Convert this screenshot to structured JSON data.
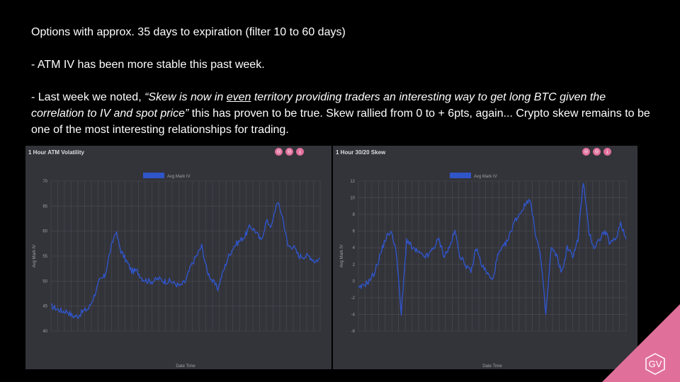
{
  "text": {
    "line1": "Options with approx. 35 days to expiration (filter 10 to 60 days)",
    "line2": "- ATM IV has been more stable this past week.",
    "line3_a": "- Last week we noted, ",
    "line3_quote_a": "“Skew is now in ",
    "line3_quote_ul": "even",
    "line3_quote_b": " territory providing traders an interesting way to get long BTC given the correlation to IV and spot price”",
    "line3_b": " this has proven to be true. Skew rallied from 0 to + 6pts, again... Crypto skew remains to be one of the most interesting relationships for trading."
  },
  "panels": [
    {
      "title": "1 Hour ATM Volatility",
      "buttons": [
        "◎",
        "◎",
        "⤓"
      ]
    },
    {
      "title": "1 Hour 30/20 Skew",
      "buttons": [
        "◎",
        "◎",
        "⤓"
      ]
    }
  ],
  "logo": "GV",
  "colors": {
    "series": "#2f55c8",
    "accent": "#e0709a",
    "panel": "#33333a"
  },
  "chart_data": [
    {
      "type": "line",
      "title": "1 Hour ATM Volatility",
      "xlabel": "Date Time",
      "ylabel": "Avg Mark IV",
      "ylim": [
        40,
        70
      ],
      "yticks": [
        40,
        45,
        50,
        55,
        60,
        65,
        70
      ],
      "grid": true,
      "legend_position": "top",
      "series": [
        {
          "name": "Avg Mark IV",
          "x": [
            0,
            0.02,
            0.04,
            0.06,
            0.08,
            0.1,
            0.12,
            0.14,
            0.16,
            0.18,
            0.2,
            0.22,
            0.24,
            0.26,
            0.28,
            0.3,
            0.32,
            0.34,
            0.36,
            0.38,
            0.4,
            0.42,
            0.44,
            0.46,
            0.48,
            0.5,
            0.52,
            0.54,
            0.56,
            0.58,
            0.6,
            0.62,
            0.64,
            0.66,
            0.68,
            0.7,
            0.72,
            0.74,
            0.76,
            0.78,
            0.8,
            0.82,
            0.84,
            0.86,
            0.88,
            0.9,
            0.92,
            0.94,
            0.96,
            0.98,
            1.0
          ],
          "values": [
            45,
            44.5,
            44,
            44,
            43,
            43,
            44,
            44.5,
            47,
            50,
            51,
            56,
            60,
            56,
            54,
            52,
            52,
            50.5,
            50,
            50,
            50.5,
            50,
            50,
            49.5,
            49,
            50,
            53,
            55,
            57,
            52,
            50,
            48.5,
            52,
            55,
            57,
            58,
            59,
            61,
            60,
            58,
            62,
            61,
            66,
            63,
            57,
            57,
            55,
            55,
            55,
            54,
            54.5
          ]
        }
      ]
    },
    {
      "type": "line",
      "title": "1 Hour 30/20 Skew",
      "xlabel": "Date Time",
      "ylabel": "Avg Mark IV",
      "ylim": [
        -6,
        12
      ],
      "yticks": [
        -6,
        -4,
        -2,
        0,
        2,
        4,
        6,
        8,
        10,
        12
      ],
      "grid": true,
      "legend_position": "top",
      "series": [
        {
          "name": "Avg Mark IV",
          "x": [
            0,
            0.02,
            0.04,
            0.06,
            0.08,
            0.1,
            0.12,
            0.14,
            0.16,
            0.18,
            0.2,
            0.22,
            0.24,
            0.26,
            0.28,
            0.3,
            0.32,
            0.34,
            0.36,
            0.38,
            0.4,
            0.42,
            0.44,
            0.46,
            0.48,
            0.5,
            0.52,
            0.54,
            0.56,
            0.58,
            0.6,
            0.62,
            0.64,
            0.66,
            0.68,
            0.7,
            0.72,
            0.74,
            0.76,
            0.78,
            0.8,
            0.82,
            0.84,
            0.86,
            0.88,
            0.9,
            0.92,
            0.94,
            0.96,
            0.98,
            1.0
          ],
          "values": [
            -1,
            -0.5,
            0,
            1,
            3,
            5,
            6,
            4,
            -4,
            5,
            4,
            3.5,
            3,
            3,
            4,
            5,
            3,
            4,
            6,
            3,
            2,
            1,
            4,
            2,
            1,
            0,
            3,
            4,
            5,
            7,
            8,
            9,
            10,
            6,
            3,
            -4,
            4,
            3,
            1,
            4,
            3,
            5,
            12,
            6,
            4,
            5,
            6,
            4.5,
            5,
            7,
            5
          ]
        }
      ]
    }
  ]
}
